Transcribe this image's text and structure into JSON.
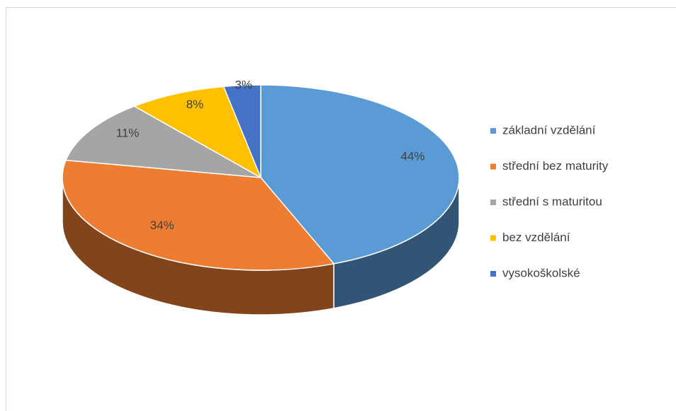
{
  "chart_data": {
    "type": "pie3d",
    "categories": [
      "základní vzdělání",
      "střední bez maturity",
      "střední s maturitou",
      "bez vzdělání",
      "vysokoškolské"
    ],
    "values": [
      44,
      34,
      11,
      8,
      3
    ],
    "value_labels": [
      "44%",
      "34%",
      "11%",
      "8%",
      "3%"
    ],
    "colors": [
      "#5b9bd5",
      "#ed7d31",
      "#a5a5a5",
      "#ffc000",
      "#4472c4"
    ],
    "legend": "right"
  }
}
